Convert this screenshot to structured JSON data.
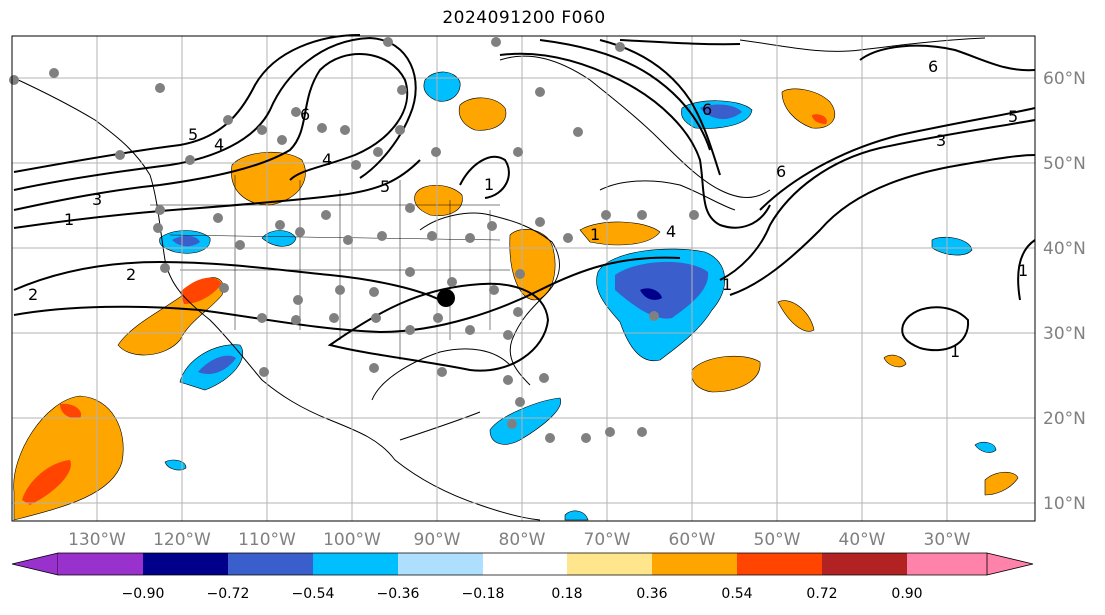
{
  "title": "2024091200 F060",
  "lon_labels": [
    "130°W",
    "120°W",
    "110°W",
    "100°W",
    "90°W",
    "80°W",
    "70°W",
    "60°W",
    "50°W",
    "40°W",
    "30°W"
  ],
  "lat_labels": [
    "60°N",
    "50°N",
    "40°N",
    "30°N",
    "20°N",
    "10°N"
  ],
  "colorbar": {
    "ticks": [
      "−0.90",
      "−0.72",
      "−0.54",
      "−0.36",
      "−0.18",
      "0.18",
      "0.36",
      "0.54",
      "0.72",
      "0.90"
    ],
    "colors": [
      "#9932cc",
      "#00008b",
      "#3a5fcd",
      "#00bfff",
      "#afdfff",
      "#ffffff",
      "#ffe68c",
      "#ffa500",
      "#ff4500",
      "#b22222",
      "#ff82ab"
    ]
  },
  "contour_labels": [
    "5",
    "4",
    "4",
    "6",
    "5",
    "3",
    "1",
    "1",
    "2",
    "2",
    "1",
    "6",
    "4",
    "3",
    "5",
    "6",
    "1",
    "1",
    "1",
    "6"
  ],
  "colors": {
    "grid": "#b3b3b3",
    "contour": "#000000",
    "station": "#808080",
    "storm": "#000000"
  }
}
